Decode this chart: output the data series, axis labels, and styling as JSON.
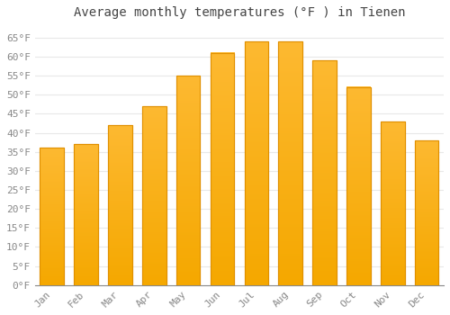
{
  "title": "Average monthly temperatures (°F ) in Tienen",
  "months": [
    "Jan",
    "Feb",
    "Mar",
    "Apr",
    "May",
    "Jun",
    "Jul",
    "Aug",
    "Sep",
    "Oct",
    "Nov",
    "Dec"
  ],
  "values": [
    36,
    37,
    42,
    47,
    55,
    61,
    64,
    64,
    59,
    52,
    43,
    38
  ],
  "bar_color_top": "#FDB931",
  "bar_color_bottom": "#F5A800",
  "bar_edge_color": "#E09000",
  "background_color": "#FFFFFF",
  "grid_color": "#E8E8E8",
  "yticks": [
    0,
    5,
    10,
    15,
    20,
    25,
    30,
    35,
    40,
    45,
    50,
    55,
    60,
    65
  ],
  "ylim": [
    0,
    68
  ],
  "title_fontsize": 10,
  "tick_fontsize": 8,
  "tick_color": "#888888",
  "bar_width": 0.7
}
